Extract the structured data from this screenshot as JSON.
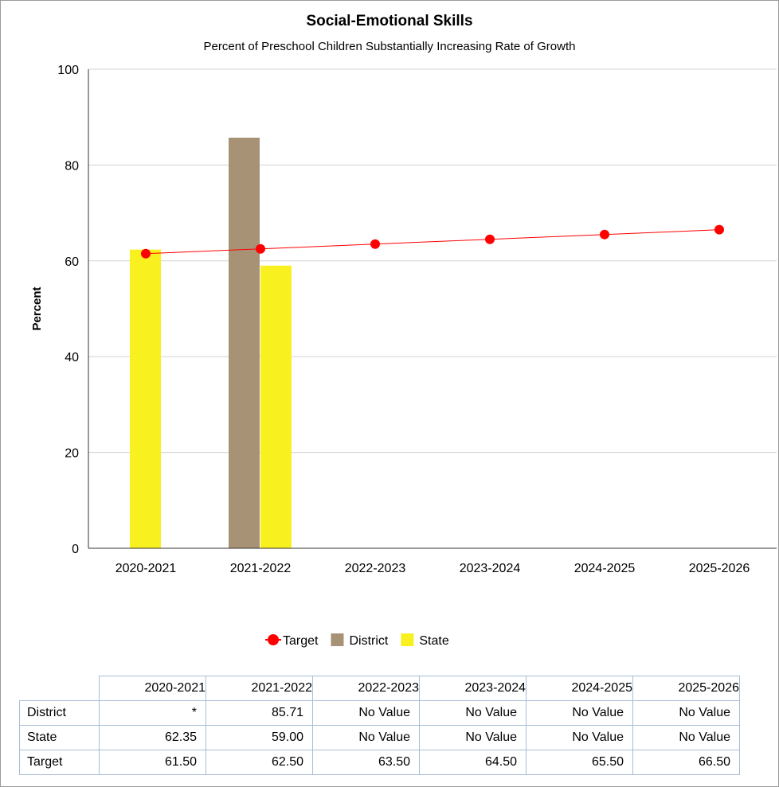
{
  "chart_data": {
    "type": "bar",
    "title": "Social-Emotional Skills",
    "subtitle": "Percent of Preschool Children Substantially Increasing Rate of Growth",
    "xlabel": "",
    "ylabel": "Percent",
    "ylim": [
      0,
      100
    ],
    "yticks": [
      "0",
      "20",
      "40",
      "60",
      "80",
      "100"
    ],
    "grid": true,
    "legend_position": "bottom-center",
    "categories": [
      "2020-2021",
      "2021-2022",
      "2022-2023",
      "2023-2024",
      "2024-2025",
      "2025-2026"
    ],
    "series": [
      {
        "name": "District",
        "kind": "bar",
        "color": "#a89276",
        "values": [
          null,
          85.71,
          null,
          null,
          null,
          null
        ]
      },
      {
        "name": "State",
        "kind": "bar",
        "color": "#f9f01f",
        "values": [
          62.35,
          59.0,
          null,
          null,
          null,
          null
        ]
      },
      {
        "name": "Target",
        "kind": "line",
        "color": "#ff0000",
        "values": [
          61.5,
          62.5,
          63.5,
          64.5,
          65.5,
          66.5
        ]
      }
    ],
    "legend": [
      "Target",
      "District",
      "State"
    ]
  },
  "table": {
    "headers": [
      "2020-2021",
      "2021-2022",
      "2022-2023",
      "2023-2024",
      "2024-2025",
      "2025-2026"
    ],
    "rows": [
      {
        "label": "District",
        "cells": [
          "*",
          "85.71",
          "No Value",
          "No Value",
          "No Value",
          "No Value"
        ]
      },
      {
        "label": "State",
        "cells": [
          "62.35",
          "59.00",
          "No Value",
          "No Value",
          "No Value",
          "No Value"
        ]
      },
      {
        "label": "Target",
        "cells": [
          "61.50",
          "62.50",
          "63.50",
          "64.50",
          "65.50",
          "66.50"
        ]
      }
    ]
  }
}
